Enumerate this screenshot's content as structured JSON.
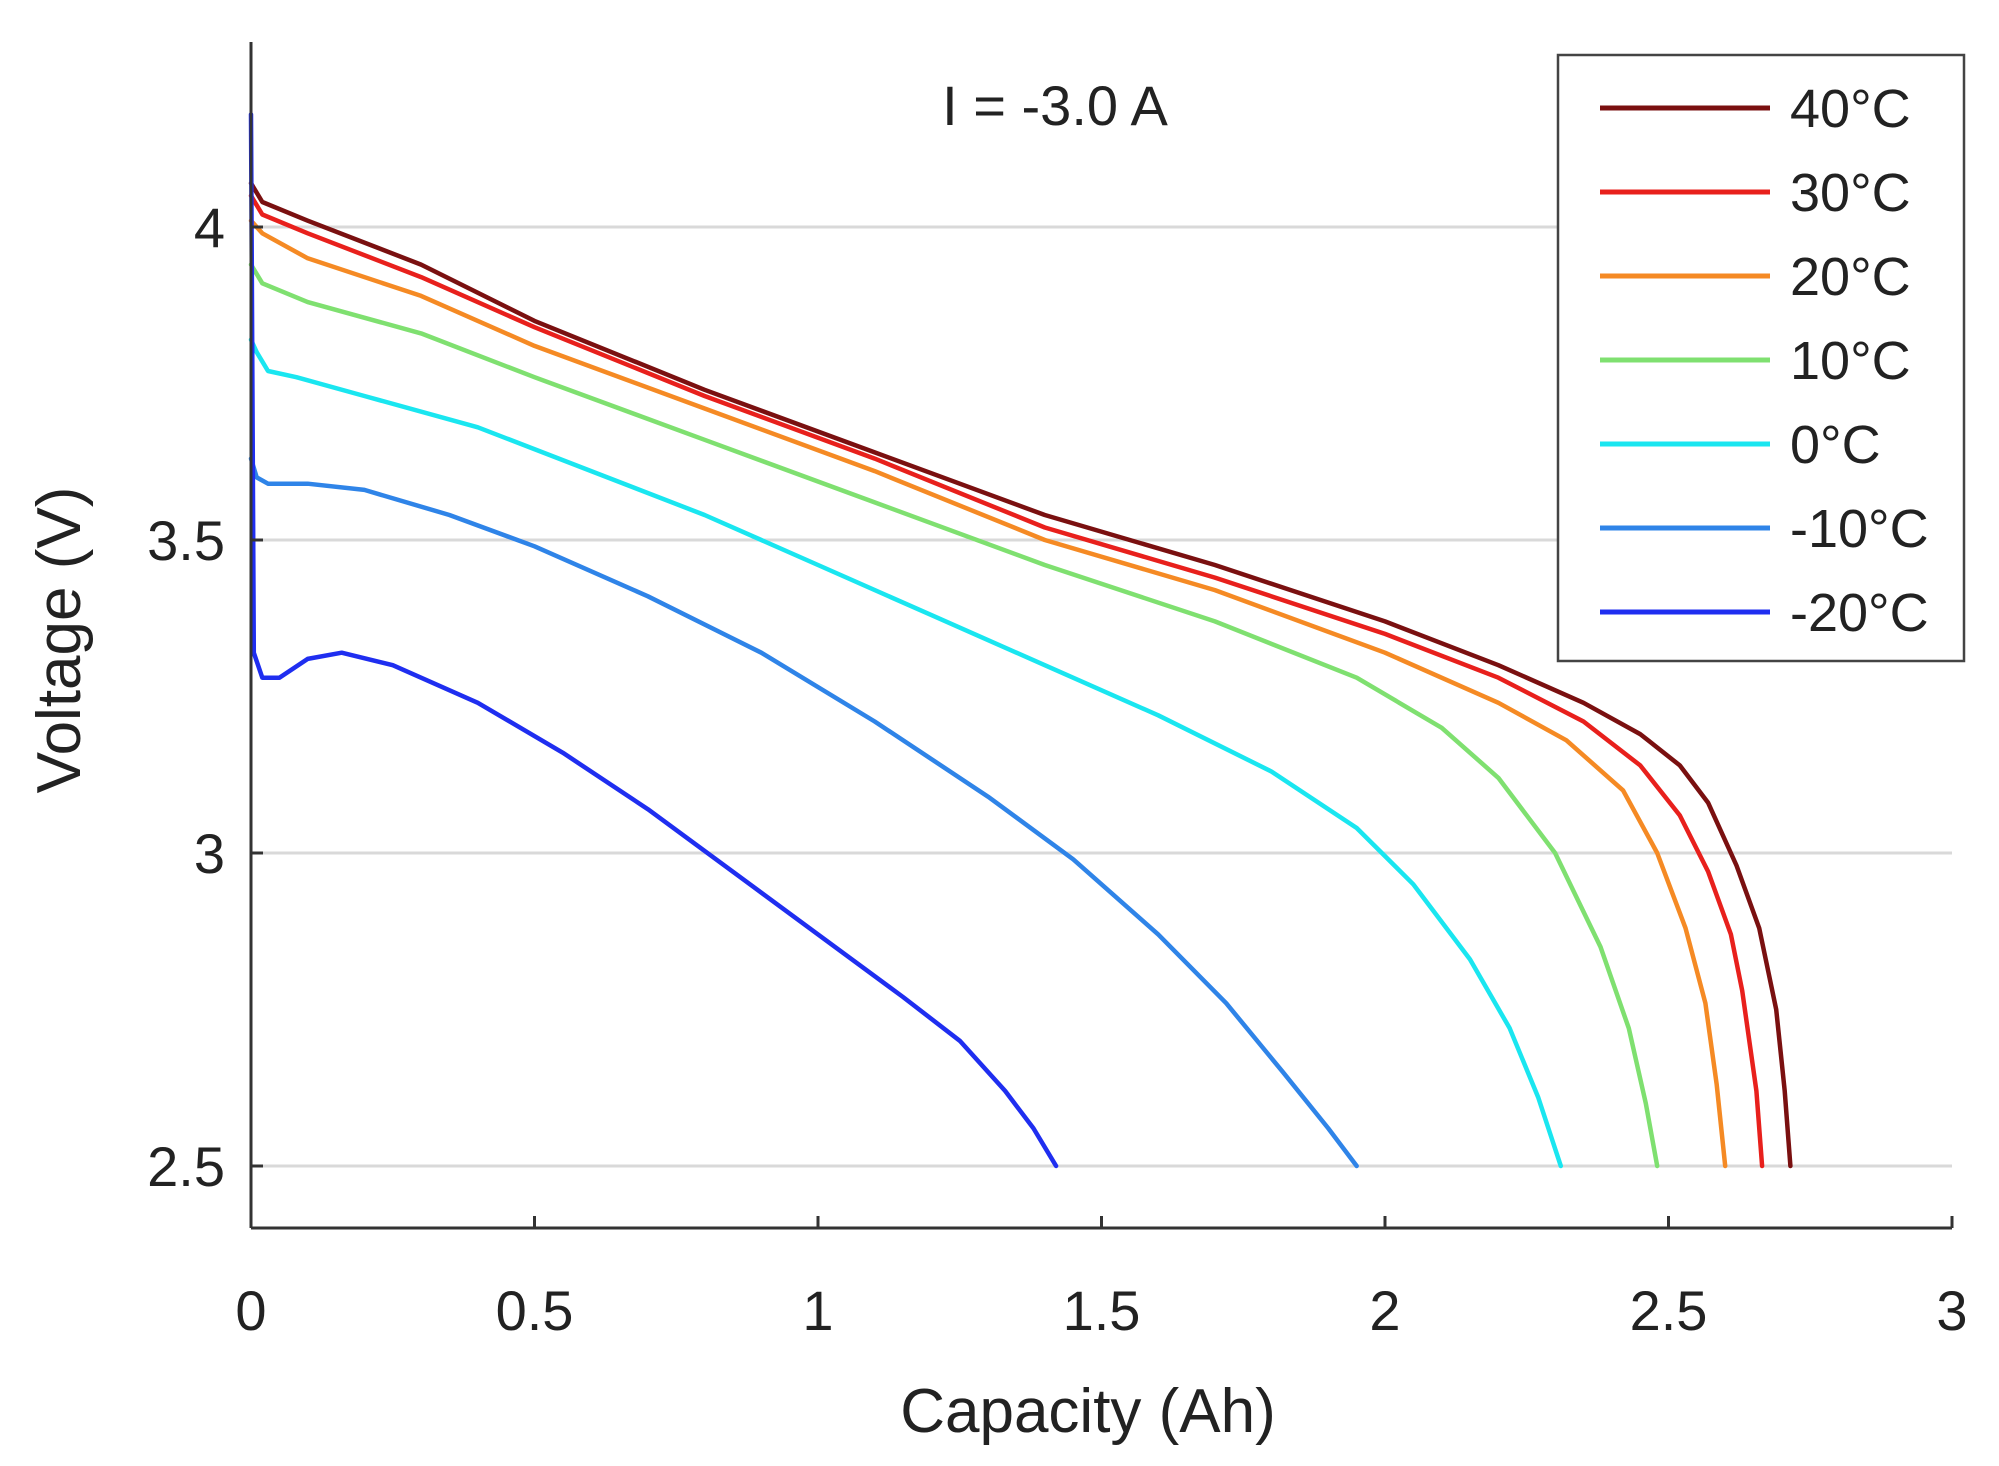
{
  "chart_data": {
    "type": "line",
    "title": "I = -3.0 A",
    "xlabel": "Capacity (Ah)",
    "ylabel": "Voltage (V)",
    "xlim": [
      0,
      3
    ],
    "ylim": [
      2.4,
      4.3
    ],
    "x_ticks": [
      0,
      0.5,
      1,
      1.5,
      2,
      2.5,
      3
    ],
    "x_tick_labels": [
      "0",
      "0.5",
      "1",
      "1.5",
      "2",
      "2.5",
      "3"
    ],
    "y_ticks": [
      2.5,
      3,
      3.5,
      4
    ],
    "y_tick_labels": [
      "2.5",
      "3",
      "3.5",
      "4"
    ],
    "grid": "horizontal",
    "legend_position": "top-right",
    "series": [
      {
        "name": "40°C",
        "color": "#7a1010",
        "x": [
          0,
          0.02,
          0.1,
          0.3,
          0.5,
          0.8,
          1.1,
          1.4,
          1.7,
          2.0,
          2.2,
          2.35,
          2.45,
          2.52,
          2.57,
          2.62,
          2.66,
          2.69,
          2.705,
          2.715
        ],
        "y": [
          4.07,
          4.04,
          4.01,
          3.94,
          3.85,
          3.74,
          3.64,
          3.54,
          3.46,
          3.37,
          3.3,
          3.24,
          3.19,
          3.14,
          3.08,
          2.98,
          2.88,
          2.75,
          2.62,
          2.5
        ]
      },
      {
        "name": "30°C",
        "color": "#e8201c",
        "x": [
          0,
          0.02,
          0.1,
          0.3,
          0.5,
          0.8,
          1.1,
          1.4,
          1.7,
          2.0,
          2.2,
          2.35,
          2.45,
          2.52,
          2.57,
          2.61,
          2.63,
          2.655,
          2.665
        ],
        "y": [
          4.05,
          4.02,
          3.99,
          3.92,
          3.84,
          3.73,
          3.63,
          3.52,
          3.44,
          3.35,
          3.28,
          3.21,
          3.14,
          3.06,
          2.97,
          2.87,
          2.78,
          2.62,
          2.5
        ]
      },
      {
        "name": "20°C",
        "color": "#f58a24",
        "x": [
          0,
          0.02,
          0.1,
          0.3,
          0.5,
          0.8,
          1.1,
          1.4,
          1.7,
          2.0,
          2.2,
          2.32,
          2.42,
          2.48,
          2.53,
          2.565,
          2.585,
          2.6
        ],
        "y": [
          4.01,
          3.99,
          3.95,
          3.89,
          3.81,
          3.71,
          3.61,
          3.5,
          3.42,
          3.32,
          3.24,
          3.18,
          3.1,
          3.0,
          2.88,
          2.76,
          2.63,
          2.5
        ]
      },
      {
        "name": "10°C",
        "color": "#7fe070",
        "x": [
          0,
          0.02,
          0.1,
          0.3,
          0.5,
          0.8,
          1.1,
          1.4,
          1.7,
          1.95,
          2.1,
          2.2,
          2.3,
          2.38,
          2.43,
          2.46,
          2.48
        ],
        "y": [
          3.94,
          3.91,
          3.88,
          3.83,
          3.76,
          3.66,
          3.56,
          3.46,
          3.37,
          3.28,
          3.2,
          3.12,
          3.0,
          2.85,
          2.72,
          2.6,
          2.5
        ]
      },
      {
        "name": "0°C",
        "color": "#1ae6f0",
        "x": [
          0,
          0.01,
          0.03,
          0.08,
          0.2,
          0.4,
          0.6,
          0.8,
          1.0,
          1.2,
          1.4,
          1.6,
          1.8,
          1.95,
          2.05,
          2.15,
          2.22,
          2.27,
          2.31
        ],
        "y": [
          3.82,
          3.8,
          3.77,
          3.76,
          3.73,
          3.68,
          3.61,
          3.54,
          3.46,
          3.38,
          3.3,
          3.22,
          3.13,
          3.04,
          2.95,
          2.83,
          2.72,
          2.61,
          2.5
        ]
      },
      {
        "name": "-10°C",
        "color": "#2f84e8",
        "x": [
          0,
          0.01,
          0.03,
          0.1,
          0.2,
          0.35,
          0.5,
          0.7,
          0.9,
          1.1,
          1.3,
          1.45,
          1.6,
          1.72,
          1.82,
          1.9,
          1.95
        ],
        "y": [
          3.63,
          3.6,
          3.59,
          3.59,
          3.58,
          3.54,
          3.49,
          3.41,
          3.32,
          3.21,
          3.09,
          2.99,
          2.87,
          2.76,
          2.65,
          2.56,
          2.5
        ]
      },
      {
        "name": "-20°C",
        "color": "#1f2ef0",
        "x": [
          0,
          0.005,
          0.02,
          0.05,
          0.1,
          0.16,
          0.25,
          0.4,
          0.55,
          0.7,
          0.85,
          1.0,
          1.15,
          1.25,
          1.33,
          1.38,
          1.42
        ],
        "y": [
          4.18,
          3.32,
          3.28,
          3.28,
          3.31,
          3.32,
          3.3,
          3.24,
          3.16,
          3.07,
          2.97,
          2.87,
          2.77,
          2.7,
          2.62,
          2.56,
          2.5
        ]
      }
    ]
  }
}
